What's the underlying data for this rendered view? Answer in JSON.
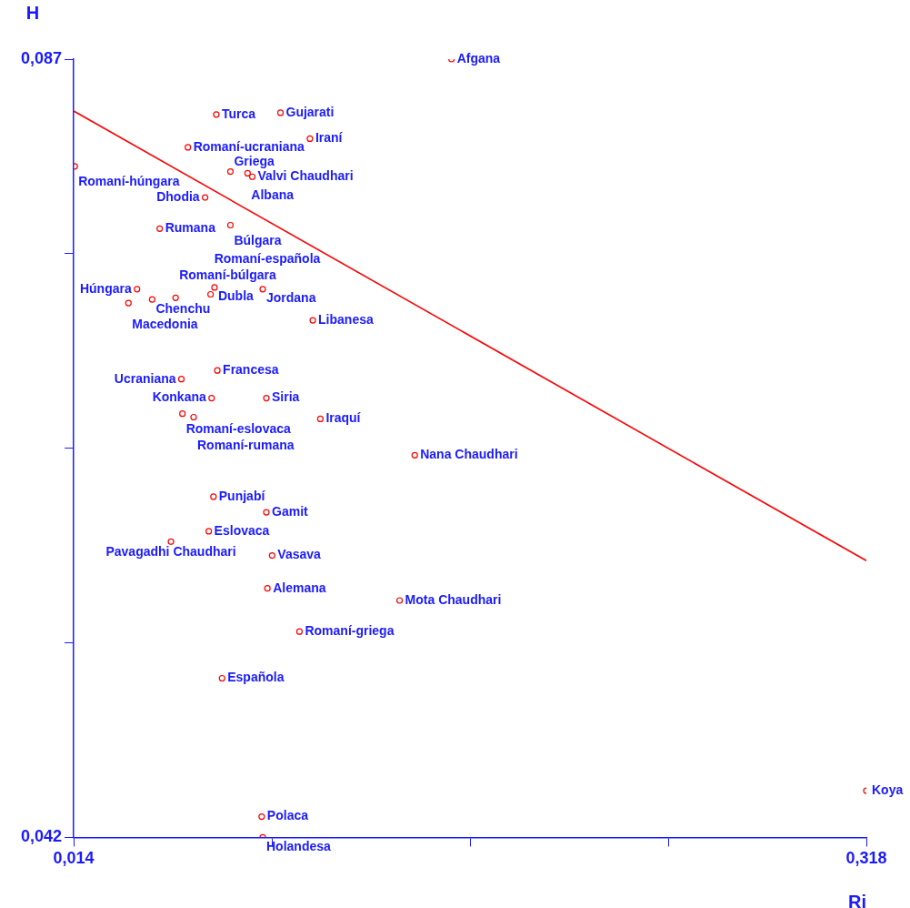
{
  "chart_data": {
    "type": "scatter",
    "xlabel": "Ri",
    "ylabel": "H",
    "xlim": [
      0.014,
      0.318
    ],
    "ylim": [
      0.042,
      0.087
    ],
    "xticks": [
      {
        "value": 0.014,
        "label": "0,014"
      },
      {
        "value": 0.09,
        "label": null
      },
      {
        "value": 0.166,
        "label": null
      },
      {
        "value": 0.242,
        "label": null
      },
      {
        "value": 0.318,
        "label": "0,318"
      }
    ],
    "yticks": [
      {
        "value": 0.042,
        "label": "0,042"
      },
      {
        "value": 0.05325,
        "label": null
      },
      {
        "value": 0.0645,
        "label": null
      },
      {
        "value": 0.07575,
        "label": null
      },
      {
        "value": 0.087,
        "label": "0,087"
      }
    ],
    "grid": false,
    "legend": false,
    "marker": "circle",
    "series": [
      {
        "type": "scatter",
        "color": "#ff0000",
        "x": [
          0.1589,
          0.0687,
          0.0933,
          0.1046,
          0.0578,
          0.0144,
          0.0741,
          0.0825,
          0.0807,
          0.0644,
          0.047,
          0.0741,
          0.0383,
          0.0441,
          0.035,
          0.0531,
          0.068,
          0.0665,
          0.0865,
          0.1057,
          0.0691,
          0.0553,
          0.0669,
          0.0879,
          0.0557,
          0.06,
          0.1086,
          0.1448,
          0.0676,
          0.0879,
          0.0658,
          0.0513,
          0.0901,
          0.0883,
          0.139,
          0.1006,
          0.0709,
          0.318,
          0.0861,
          0.0865
        ],
        "values": [
          0.087,
          0.0838,
          0.0839,
          0.0824,
          0.0819,
          0.0808,
          0.0805,
          0.0802,
          0.0804,
          0.079,
          0.0772,
          0.0774,
          0.0737,
          0.0731,
          0.0729,
          0.0732,
          0.0738,
          0.0734,
          0.0737,
          0.0719,
          0.069,
          0.0685,
          0.0674,
          0.0674,
          0.0665,
          0.0663,
          0.0662,
          0.0641,
          0.0617,
          0.0608,
          0.0597,
          0.0591,
          0.0583,
          0.0564,
          0.0557,
          0.0539,
          0.0512,
          0.0447,
          0.0432,
          0.042
        ]
      },
      {
        "type": "line",
        "color": "#ff0000",
        "marker": "none",
        "x": [
          0.014,
          0.318
        ],
        "values": [
          0.084,
          0.058
        ]
      }
    ],
    "annotations": [
      {
        "text": "Afgana",
        "x": 0.1589,
        "y": 0.087
      },
      {
        "text": "Turca",
        "x": 0.0687,
        "y": 0.0838
      },
      {
        "text": "Gujarati",
        "x": 0.0933,
        "y": 0.0839
      },
      {
        "text": "Iraní",
        "x": 0.1046,
        "y": 0.0824
      },
      {
        "text": "Romaní-ucraniana",
        "x": 0.0578,
        "y": 0.0819
      },
      {
        "text": "Romaní-húngara",
        "x": 0.0144,
        "y": 0.0808
      },
      {
        "text": "Griega",
        "x": 0.0741,
        "y": 0.0805
      },
      {
        "text": "Valvi Chaudhari",
        "x": 0.0825,
        "y": 0.0802
      },
      {
        "text": "Albana",
        "x": 0.0807,
        "y": 0.0804
      },
      {
        "text": "Dhodia",
        "x": 0.0644,
        "y": 0.079
      },
      {
        "text": "Rumana",
        "x": 0.047,
        "y": 0.0772
      },
      {
        "text": "Búlgara",
        "x": 0.0741,
        "y": 0.0774
      },
      {
        "text": "Húngara",
        "x": 0.0383,
        "y": 0.0737
      },
      {
        "text": "Chenchu",
        "x": 0.0441,
        "y": 0.0731
      },
      {
        "text": "Macedonia",
        "x": 0.035,
        "y": 0.0729
      },
      {
        "text": "Romaní-búlgara",
        "x": 0.0531,
        "y": 0.0732
      },
      {
        "text": "Dubla",
        "x": 0.068,
        "y": 0.0738
      },
      {
        "text": "Romaní-española",
        "x": 0.0665,
        "y": 0.0734
      },
      {
        "text": "Jordana",
        "x": 0.0865,
        "y": 0.0737
      },
      {
        "text": "Libanesa",
        "x": 0.1057,
        "y": 0.0719
      },
      {
        "text": "Francesa",
        "x": 0.0691,
        "y": 0.069
      },
      {
        "text": "Ucraniana",
        "x": 0.0553,
        "y": 0.0685
      },
      {
        "text": "Konkana",
        "x": 0.0669,
        "y": 0.0674
      },
      {
        "text": "Siria",
        "x": 0.0879,
        "y": 0.0674
      },
      {
        "text": "Romaní-eslovaca",
        "x": 0.0557,
        "y": 0.0665
      },
      {
        "text": "Romaní-rumana",
        "x": 0.06,
        "y": 0.0663
      },
      {
        "text": "Iraquí",
        "x": 0.1086,
        "y": 0.0662
      },
      {
        "text": "Nana Chaudhari",
        "x": 0.1448,
        "y": 0.0641
      },
      {
        "text": "Punjabí",
        "x": 0.0676,
        "y": 0.0617
      },
      {
        "text": "Gamit",
        "x": 0.0879,
        "y": 0.0608
      },
      {
        "text": "Eslovaca",
        "x": 0.0658,
        "y": 0.0597
      },
      {
        "text": "Pavagadhi Chaudhari",
        "x": 0.0513,
        "y": 0.0591
      },
      {
        "text": "Vasava",
        "x": 0.0901,
        "y": 0.0583
      },
      {
        "text": "Alemana",
        "x": 0.0883,
        "y": 0.0564
      },
      {
        "text": "Mota Chaudhari",
        "x": 0.139,
        "y": 0.0557
      },
      {
        "text": "Romaní-griega",
        "x": 0.1006,
        "y": 0.0539
      },
      {
        "text": "Española",
        "x": 0.0709,
        "y": 0.0512
      },
      {
        "text": "Koya",
        "x": 0.318,
        "y": 0.0447
      },
      {
        "text": "Polaca",
        "x": 0.0861,
        "y": 0.0432
      },
      {
        "text": "Holandesa",
        "x": 0.0865,
        "y": 0.042
      }
    ]
  }
}
